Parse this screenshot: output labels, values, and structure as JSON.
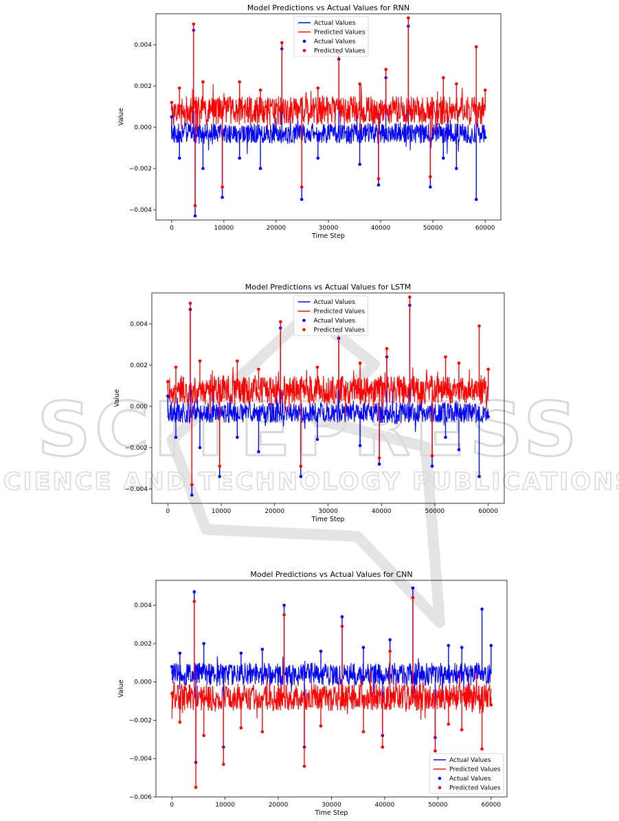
{
  "watermark": {
    "line1": "SCITEPRESS",
    "line2": "SCIENCE AND TECHNOLOGY PUBLICATIONS"
  },
  "chart_data": [
    {
      "type": "line",
      "title": "Model Predictions vs Actual Values for RNN",
      "xlabel": "Time Step",
      "ylabel": "Value",
      "xlim": [
        -3000,
        63000
      ],
      "ylim": [
        -0.0045,
        0.0055
      ],
      "xticks": [
        0,
        10000,
        20000,
        30000,
        40000,
        50000,
        60000
      ],
      "yticks": [
        -0.004,
        -0.002,
        0.0,
        0.002,
        0.004
      ],
      "ytick_labels": [
        "−0.004",
        "−0.002",
        "0.000",
        "0.002",
        "0.004"
      ],
      "legend_position": "upper-center",
      "legend_entries": [
        {
          "label": "Actual Values",
          "kind": "line",
          "color": "#0000ff"
        },
        {
          "label": "Predicted Values",
          "kind": "line",
          "color": "#ff0000"
        },
        {
          "label": "Actual Values",
          "kind": "marker",
          "color": "#0000ff"
        },
        {
          "label": "Predicted Values",
          "kind": "marker",
          "color": "#ff0000"
        }
      ],
      "series": [
        {
          "name": "Actual Values",
          "color": "#0000ff",
          "x": [
            0,
            1500,
            4200,
            4500,
            6000,
            9700,
            13000,
            17000,
            21100,
            24900,
            28000,
            32000,
            36000,
            39600,
            41000,
            45300,
            49500,
            52000,
            54500,
            58300,
            60000
          ],
          "y": [
            0.0005,
            -0.0015,
            0.0047,
            -0.0043,
            -0.002,
            -0.0034,
            -0.0015,
            -0.002,
            0.0038,
            -0.0035,
            -0.0015,
            0.0033,
            -0.0018,
            -0.0028,
            0.0024,
            0.0049,
            -0.0029,
            -0.0015,
            -0.002,
            -0.0035,
            -0.0005
          ]
        },
        {
          "name": "Predicted Values",
          "color": "#ff0000",
          "x": [
            0,
            1500,
            4200,
            4500,
            6000,
            9700,
            13000,
            17000,
            21100,
            24900,
            28000,
            32000,
            36000,
            39600,
            41000,
            45300,
            49500,
            52000,
            54500,
            58300,
            60000
          ],
          "y": [
            0.0012,
            0.0019,
            0.005,
            -0.0038,
            0.0022,
            -0.0029,
            0.0022,
            0.0018,
            0.0041,
            -0.0029,
            0.0019,
            0.0036,
            0.0021,
            -0.0025,
            0.0028,
            0.0053,
            -0.0024,
            0.0024,
            0.0021,
            0.0039,
            0.0018
          ]
        }
      ]
    },
    {
      "type": "line",
      "title": "Model Predictions vs Actual Values for LSTM",
      "xlabel": "Time Step",
      "ylabel": "Value",
      "xlim": [
        -3000,
        63000
      ],
      "ylim": [
        -0.0047,
        0.0055
      ],
      "xticks": [
        0,
        10000,
        20000,
        30000,
        40000,
        50000,
        60000
      ],
      "yticks": [
        -0.004,
        -0.002,
        0.0,
        0.002,
        0.004
      ],
      "ytick_labels": [
        "−0.004",
        "−0.002",
        "0.000",
        "0.002",
        "0.004"
      ],
      "legend_position": "upper-center",
      "legend_entries": [
        {
          "label": "Actual Values",
          "kind": "line",
          "color": "#0000ff"
        },
        {
          "label": "Predicted Values",
          "kind": "line",
          "color": "#ff0000"
        },
        {
          "label": "Actual Values",
          "kind": "marker",
          "color": "#0000ff"
        },
        {
          "label": "Predicted Values",
          "kind": "marker",
          "color": "#ff0000"
        }
      ],
      "series": [
        {
          "name": "Actual Values",
          "color": "#0000ff",
          "x": [
            0,
            1500,
            4200,
            4500,
            6000,
            9700,
            13000,
            17000,
            21100,
            24900,
            28000,
            32000,
            36000,
            39600,
            41000,
            45300,
            49500,
            52000,
            54500,
            58300,
            60000
          ],
          "y": [
            0.0005,
            -0.0015,
            0.0047,
            -0.0043,
            -0.002,
            -0.0034,
            -0.0015,
            -0.0022,
            0.0038,
            -0.0034,
            -0.0016,
            0.0033,
            -0.0019,
            -0.0028,
            0.0024,
            0.0049,
            -0.0029,
            -0.0015,
            -0.0021,
            -0.0034,
            -0.0005
          ]
        },
        {
          "name": "Predicted Values",
          "color": "#ff0000",
          "x": [
            0,
            1500,
            4200,
            4500,
            6000,
            9700,
            13000,
            17000,
            21100,
            24900,
            28000,
            32000,
            36000,
            39600,
            41000,
            45300,
            49500,
            52000,
            54500,
            58300,
            60000
          ],
          "y": [
            0.0012,
            0.0019,
            0.005,
            -0.0038,
            0.0022,
            -0.0029,
            0.0022,
            0.0018,
            0.0041,
            -0.0029,
            0.0019,
            0.0036,
            0.0021,
            -0.0025,
            0.0028,
            0.0053,
            -0.0024,
            0.0024,
            0.0021,
            0.0039,
            0.0018
          ]
        }
      ]
    },
    {
      "type": "line",
      "title": "Model Predictions vs Actual Values for CNN",
      "xlabel": "Time Step",
      "ylabel": "Value",
      "xlim": [
        -3000,
        63000
      ],
      "ylim": [
        -0.006,
        0.0053
      ],
      "xticks": [
        0,
        10000,
        20000,
        30000,
        40000,
        50000,
        60000
      ],
      "yticks": [
        -0.006,
        -0.004,
        -0.002,
        0.0,
        0.002,
        0.004
      ],
      "ytick_labels": [
        "−0.006",
        "−0.004",
        "−0.002",
        "0.000",
        "0.002",
        "0.004"
      ],
      "legend_position": "lower-right",
      "legend_entries": [
        {
          "label": "Actual Values",
          "kind": "line",
          "color": "#0000ff"
        },
        {
          "label": "Predicted Values",
          "kind": "line",
          "color": "#ff0000"
        },
        {
          "label": "Actual Values",
          "kind": "marker",
          "color": "#0000ff"
        },
        {
          "label": "Predicted Values",
          "kind": "marker",
          "color": "#ff0000"
        }
      ],
      "series": [
        {
          "name": "Actual Values",
          "color": "#0000ff",
          "x": [
            0,
            1500,
            4200,
            4500,
            6000,
            9700,
            13000,
            17000,
            21100,
            24900,
            28000,
            32000,
            36000,
            39600,
            41000,
            45300,
            49500,
            52000,
            54500,
            58300,
            60000
          ],
          "y": [
            0.0008,
            0.0015,
            0.0047,
            -0.0042,
            0.002,
            -0.0034,
            0.0015,
            0.0017,
            0.004,
            -0.0034,
            0.0016,
            0.0034,
            0.0018,
            -0.0028,
            0.0022,
            0.0049,
            -0.0029,
            0.0019,
            0.0018,
            0.0038,
            0.0019
          ]
        },
        {
          "name": "Predicted Values",
          "color": "#ff0000",
          "x": [
            0,
            1500,
            4200,
            4500,
            6000,
            9700,
            13000,
            17000,
            21100,
            24900,
            28000,
            32000,
            36000,
            39600,
            41000,
            45300,
            49500,
            52000,
            54500,
            58300,
            60000
          ],
          "y": [
            -0.0006,
            -0.0021,
            0.0042,
            -0.0055,
            -0.0028,
            -0.0043,
            -0.0024,
            -0.0026,
            0.0035,
            -0.0044,
            -0.0023,
            0.0029,
            -0.0026,
            -0.0034,
            0.0016,
            0.0044,
            -0.0036,
            -0.0022,
            -0.0025,
            -0.0035,
            -0.0012
          ]
        }
      ]
    }
  ]
}
